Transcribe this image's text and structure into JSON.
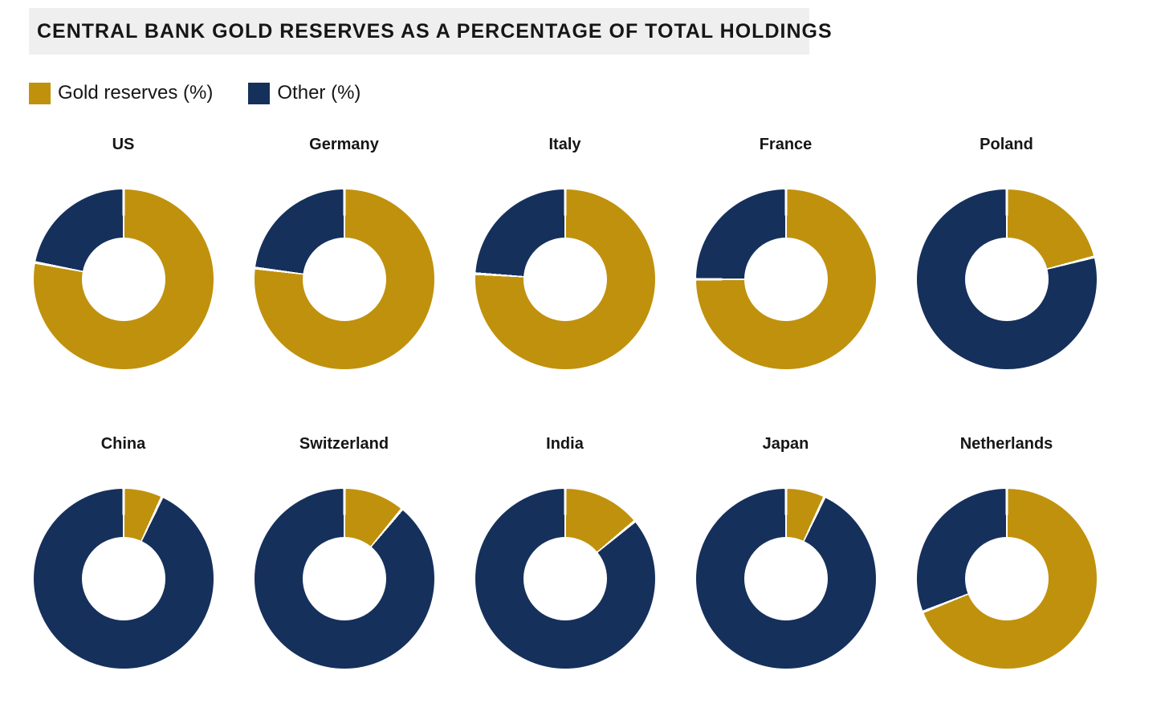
{
  "colors": {
    "gold": "#C0910D",
    "other": "#16305C",
    "title_bg": "#EFEFEF",
    "text": "#161616",
    "background": "#FFFFFF"
  },
  "chart_data": {
    "type": "pie",
    "variant": "donut-grid",
    "title": "CENTRAL BANK GOLD RESERVES AS A PERCENTAGE OF TOTAL HOLDINGS",
    "unit": "%",
    "legend": [
      {
        "label": "Gold reserves (%)",
        "color_key": "gold"
      },
      {
        "label": "Other (%)",
        "color_key": "other"
      }
    ],
    "layout": {
      "rows": 2,
      "cols": 5,
      "start_angle_deg": 0,
      "direction": "clockwise",
      "hole_ratio": 0.46,
      "legend_position": "top-left",
      "slice_separator": "hairline-white"
    },
    "charts": [
      {
        "country": "US",
        "gold_reserves_pct": 78,
        "other_pct": 22
      },
      {
        "country": "Germany",
        "gold_reserves_pct": 77,
        "other_pct": 23
      },
      {
        "country": "Italy",
        "gold_reserves_pct": 76,
        "other_pct": 24
      },
      {
        "country": "France",
        "gold_reserves_pct": 75,
        "other_pct": 25
      },
      {
        "country": "Poland",
        "gold_reserves_pct": 21,
        "other_pct": 79
      },
      {
        "country": "China",
        "gold_reserves_pct": 7,
        "other_pct": 93
      },
      {
        "country": "Switzerland",
        "gold_reserves_pct": 11,
        "other_pct": 89
      },
      {
        "country": "India",
        "gold_reserves_pct": 14,
        "other_pct": 86
      },
      {
        "country": "Japan",
        "gold_reserves_pct": 7,
        "other_pct": 93
      },
      {
        "country": "Netherlands",
        "gold_reserves_pct": 69,
        "other_pct": 31
      }
    ]
  }
}
